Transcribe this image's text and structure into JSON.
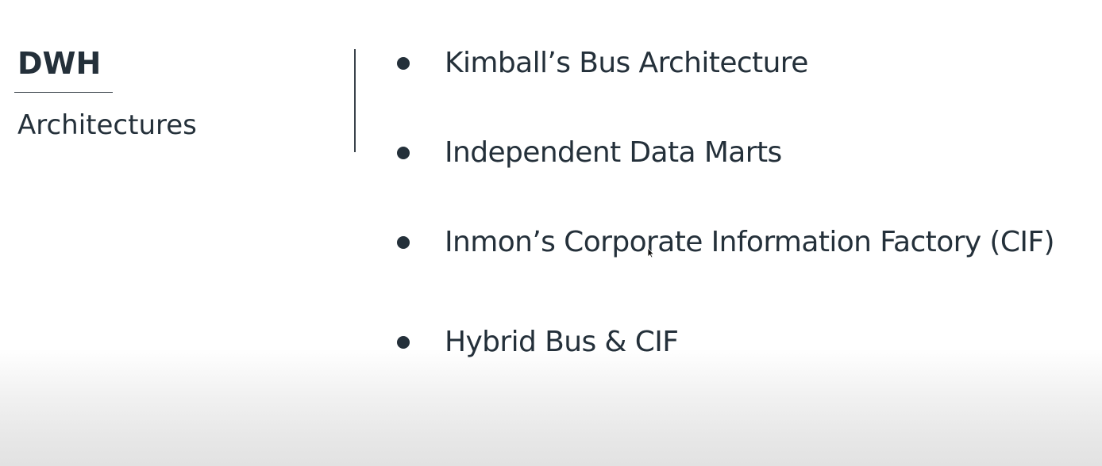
{
  "slide": {
    "title": "DWH",
    "subtitle": "Architectures",
    "bullets": [
      "Kimball’s Bus Architecture",
      "Independent Data Marts",
      "Inmon’s Corporate Information Factory (CIF)",
      "Hybrid Bus & CIF"
    ]
  },
  "colors": {
    "text": "#24303a",
    "background": "#ffffff",
    "footer_gradient": "#e2e2e2"
  },
  "icons": {
    "cursor": "mouse-pointer-icon"
  }
}
